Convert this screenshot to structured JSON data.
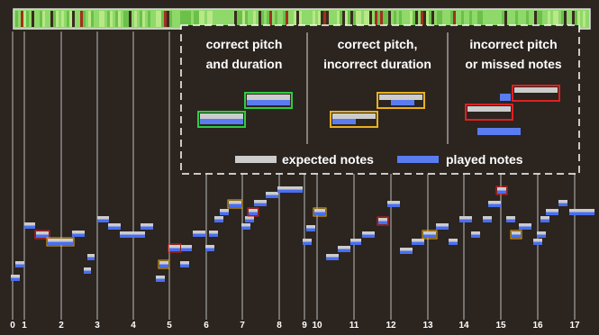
{
  "legend": {
    "columns": [
      {
        "lines": [
          "correct pitch",
          "and duration"
        ]
      },
      {
        "lines": [
          "correct pitch,",
          "incorrect duration"
        ]
      },
      {
        "lines": [
          "incorrect pitch",
          "or missed notes"
        ]
      }
    ],
    "keys": [
      "expected notes",
      "played notes"
    ]
  },
  "measures": [
    "0",
    "1",
    "2",
    "3",
    "4",
    "5",
    "6",
    "7",
    "8",
    "9",
    "10",
    "11",
    "12",
    "13",
    "14",
    "15",
    "16",
    "17"
  ]
}
